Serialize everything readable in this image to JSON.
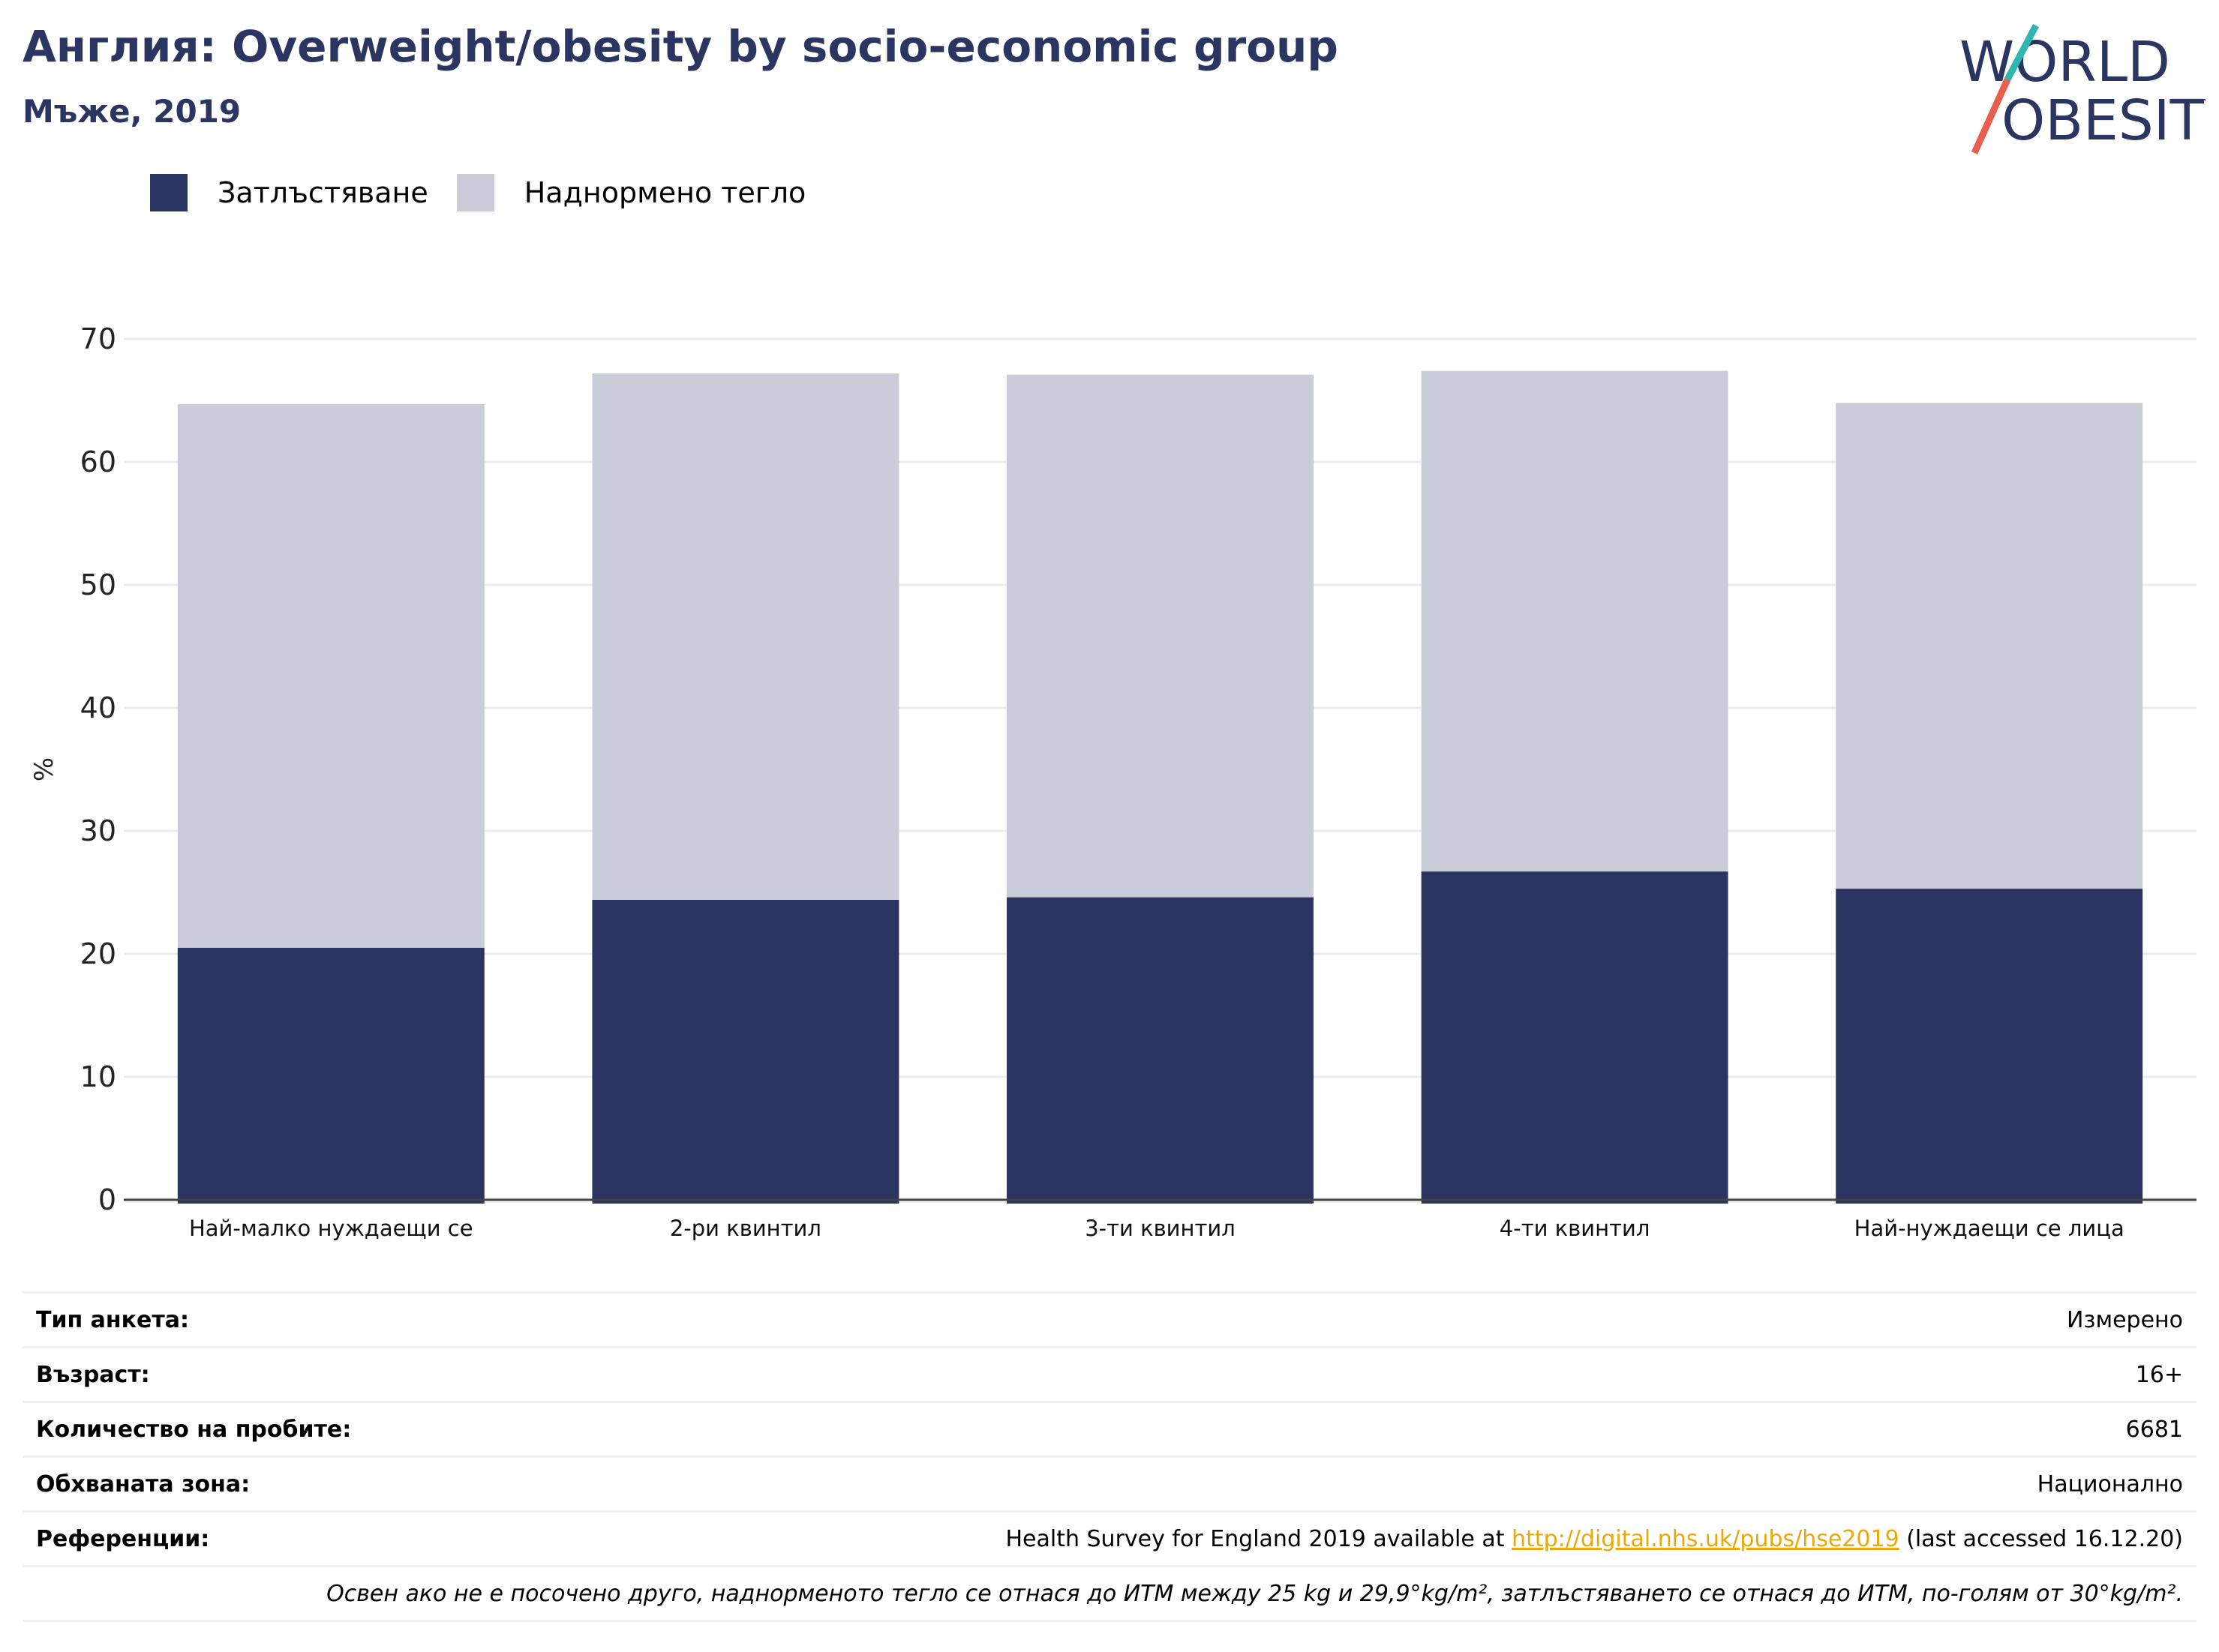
{
  "header": {
    "title": "Англия: Overweight/obesity by socio-economic group",
    "subtitle": "Мъже, 2019"
  },
  "logo": {
    "line1": "WORLD",
    "line2": "OBESITY"
  },
  "colors": {
    "obesity": "#2a3562",
    "overweight": "#cacdd9",
    "accent_teal": "#2fb6b0",
    "accent_coral": "#e8604d",
    "link": "#e8a90c"
  },
  "legend": [
    {
      "label": "Затлъстяване",
      "color": "#2a3562"
    },
    {
      "label": "Наднормено тегло",
      "color": "#cacdd9"
    }
  ],
  "chart_data": {
    "type": "bar",
    "stacked": true,
    "categories": [
      "Най-малко нуждаещи се",
      "2-ри квинтил",
      "3-ти квинтил",
      "4-ти квинтил",
      "Най-нуждаещи се лица"
    ],
    "series": [
      {
        "name": "Затлъстяване",
        "values": [
          20.5,
          24.4,
          24.6,
          26.7,
          25.3
        ]
      },
      {
        "name": "Наднормено тегло",
        "values": [
          44.2,
          42.8,
          42.5,
          40.7,
          39.5
        ]
      }
    ],
    "ylabel": "%",
    "ylim": [
      0,
      70
    ],
    "yticks": [
      0,
      10,
      20,
      30,
      40,
      50,
      60,
      70
    ],
    "grid": true,
    "legend_position": "top-left"
  },
  "info": {
    "survey_type": {
      "label": "Тип анкета:",
      "value": "Измерено"
    },
    "age": {
      "label": "Възраст:",
      "value": "16+"
    },
    "sample_size": {
      "label": "Количество на пробите:",
      "value": "6681"
    },
    "area": {
      "label": "Обхваната зона:",
      "value": "Национално"
    },
    "references": {
      "label": "Референции:",
      "prefix": "Health Survey for England 2019 available at ",
      "link": "http://digital.nhs.uk/pubs/hse2019",
      "suffix": " (last accessed 16.12.20)"
    },
    "note": "Освен ако не е посочено друго, наднорменото тегло се отнася до ИТМ между 25 kg и 29,9°kg/m², затлъстяването се отнася до ИТМ, по-голям от 30°kg/m²."
  }
}
